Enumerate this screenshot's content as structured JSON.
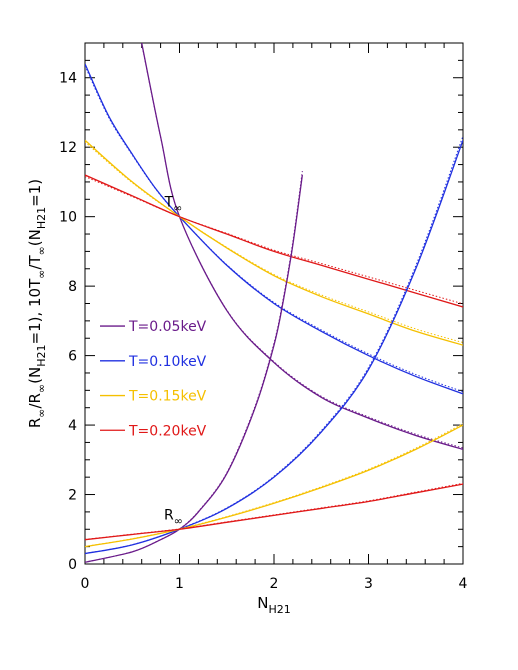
{
  "chart_data": {
    "type": "line",
    "title": "",
    "xlabel": {
      "main": "N",
      "sub": "H21"
    },
    "ylabel": {
      "parts": [
        {
          "t": "R",
          "sub": "∞"
        },
        {
          "t": "/R"
        },
        {
          "t": "",
          "sub": "∞"
        },
        {
          "t": "(N"
        },
        {
          "t": "",
          "sub": "H21"
        },
        {
          "t": "=1),  10T"
        },
        {
          "t": "",
          "sub": "∞"
        },
        {
          "t": "/T"
        },
        {
          "t": "",
          "sub": "∞"
        },
        {
          "t": "(N"
        },
        {
          "t": "",
          "sub": "H21"
        },
        {
          "t": "=1)"
        }
      ]
    },
    "xlim": [
      0,
      4
    ],
    "ylim": [
      0,
      15
    ],
    "xticks": [
      0,
      1,
      2,
      3,
      4
    ],
    "yticks": [
      0,
      2,
      4,
      6,
      8,
      10,
      12,
      14
    ],
    "annotations": [
      {
        "main": "T",
        "sub": "∞",
        "x": 1.0,
        "y": 10.0
      },
      {
        "main": "R",
        "sub": "∞",
        "x": 1.0,
        "y": 1.0
      }
    ],
    "legend_position": "left-middle",
    "series": [
      {
        "name": "T=0.05keV",
        "color": "#6a1b8a",
        "group": "T",
        "x": [
          0.6,
          0.8,
          1.0,
          1.5,
          2.0,
          2.5,
          3.0,
          3.5,
          4.0
        ],
        "y": [
          15.0,
          12.3,
          10.0,
          7.3,
          5.8,
          4.8,
          4.2,
          3.7,
          3.3
        ]
      },
      {
        "name": "T=0.10keV",
        "color": "#2030e0",
        "group": "T",
        "x": [
          0.0,
          0.25,
          0.5,
          0.75,
          1.0,
          1.5,
          2.0,
          2.5,
          3.0,
          3.5,
          4.0
        ],
        "y": [
          14.4,
          12.9,
          11.8,
          10.8,
          10.0,
          8.6,
          7.5,
          6.7,
          6.0,
          5.4,
          4.9
        ]
      },
      {
        "name": "T=0.15keV",
        "color": "#f5c000",
        "group": "T",
        "x": [
          0.0,
          0.5,
          1.0,
          1.5,
          2.0,
          2.5,
          3.0,
          3.5,
          4.0
        ],
        "y": [
          12.2,
          11.0,
          10.0,
          9.1,
          8.3,
          7.7,
          7.2,
          6.7,
          6.3
        ]
      },
      {
        "name": "T=0.20keV",
        "color": "#e01818",
        "group": "T",
        "x": [
          0.0,
          0.5,
          1.0,
          1.5,
          2.0,
          2.5,
          3.0,
          3.5,
          4.0
        ],
        "y": [
          11.2,
          10.6,
          10.0,
          9.5,
          9.0,
          8.6,
          8.2,
          7.8,
          7.4
        ]
      },
      {
        "name": "T=0.05keV",
        "color": "#6a1b8a",
        "group": "R",
        "x": [
          0.0,
          0.5,
          0.8,
          1.0,
          1.2,
          1.5,
          1.8,
          2.0,
          2.1,
          2.2,
          2.3
        ],
        "y": [
          0.05,
          0.35,
          0.7,
          1.0,
          1.5,
          2.6,
          4.5,
          6.3,
          7.6,
          9.2,
          11.2
        ]
      },
      {
        "name": "T=0.10keV",
        "color": "#2030e0",
        "group": "R",
        "x": [
          0.0,
          0.5,
          1.0,
          1.5,
          2.0,
          2.5,
          3.0,
          3.5,
          4.0
        ],
        "y": [
          0.3,
          0.55,
          1.0,
          1.6,
          2.5,
          3.8,
          5.6,
          8.5,
          12.2
        ]
      },
      {
        "name": "T=0.15keV",
        "color": "#f5c000",
        "group": "R",
        "x": [
          0.0,
          0.5,
          1.0,
          1.5,
          2.0,
          2.5,
          3.0,
          3.5,
          4.0
        ],
        "y": [
          0.5,
          0.72,
          1.0,
          1.35,
          1.75,
          2.2,
          2.7,
          3.3,
          4.0
        ]
      },
      {
        "name": "T=0.20keV",
        "color": "#e01818",
        "group": "R",
        "x": [
          0.0,
          0.5,
          1.0,
          1.5,
          2.0,
          2.5,
          3.0,
          3.5,
          4.0
        ],
        "y": [
          0.7,
          0.85,
          1.0,
          1.2,
          1.4,
          1.6,
          1.8,
          2.05,
          2.3
        ]
      }
    ]
  }
}
